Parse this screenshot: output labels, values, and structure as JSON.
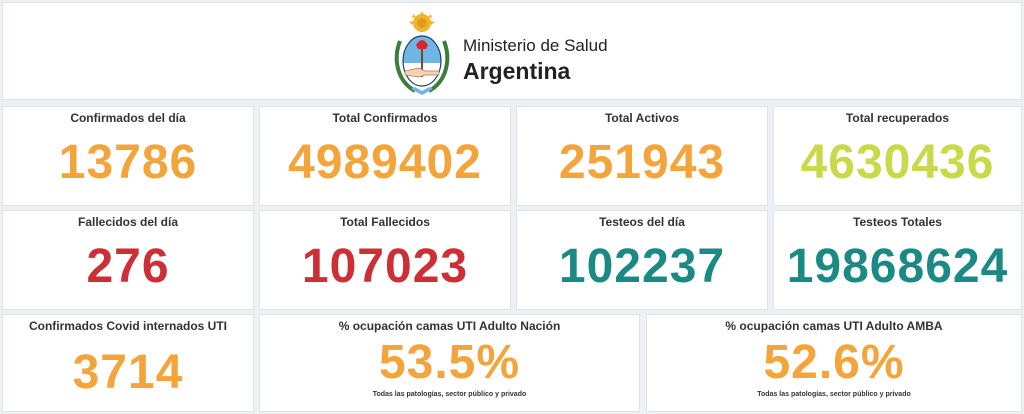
{
  "header": {
    "brand_line1": "Ministerio de Salud",
    "brand_line2": "Argentina",
    "emblem_icon": "argentina-coat-of-arms-icon"
  },
  "colors": {
    "orange": "#f3a43b",
    "yellow_green": "#c9d94a",
    "red": "#cc2f36",
    "teal": "#1c8a84"
  },
  "cards": {
    "confirmados_dia": {
      "title": "Confirmados del día",
      "value": "13786"
    },
    "total_confirmados": {
      "title": "Total Confirmados",
      "value": "4989402"
    },
    "total_activos": {
      "title": "Total Activos",
      "value": "251943"
    },
    "total_recuperados": {
      "title": "Total recuperados",
      "value": "4630436"
    },
    "fallecidos_dia": {
      "title": "Fallecidos del día",
      "value": "276"
    },
    "total_fallecidos": {
      "title": "Total Fallecidos",
      "value": "107023"
    },
    "testeos_dia": {
      "title": "Testeos del día",
      "value": "102237"
    },
    "testeos_totales": {
      "title": "Testeos Totales",
      "value": "19868624"
    },
    "internados_uti": {
      "title": "Confirmados Covid internados UTI",
      "value": "3714"
    },
    "ocupacion_nacion": {
      "title": "% ocupación camas UTI Adulto Nación",
      "value": "53.5%",
      "note": "Todas las patologías, sector público y privado"
    },
    "ocupacion_amba": {
      "title": "% ocupación camas UTI Adulto AMBA",
      "value": "52.6%",
      "note": "Todas las patologías, sector público y privado"
    }
  }
}
